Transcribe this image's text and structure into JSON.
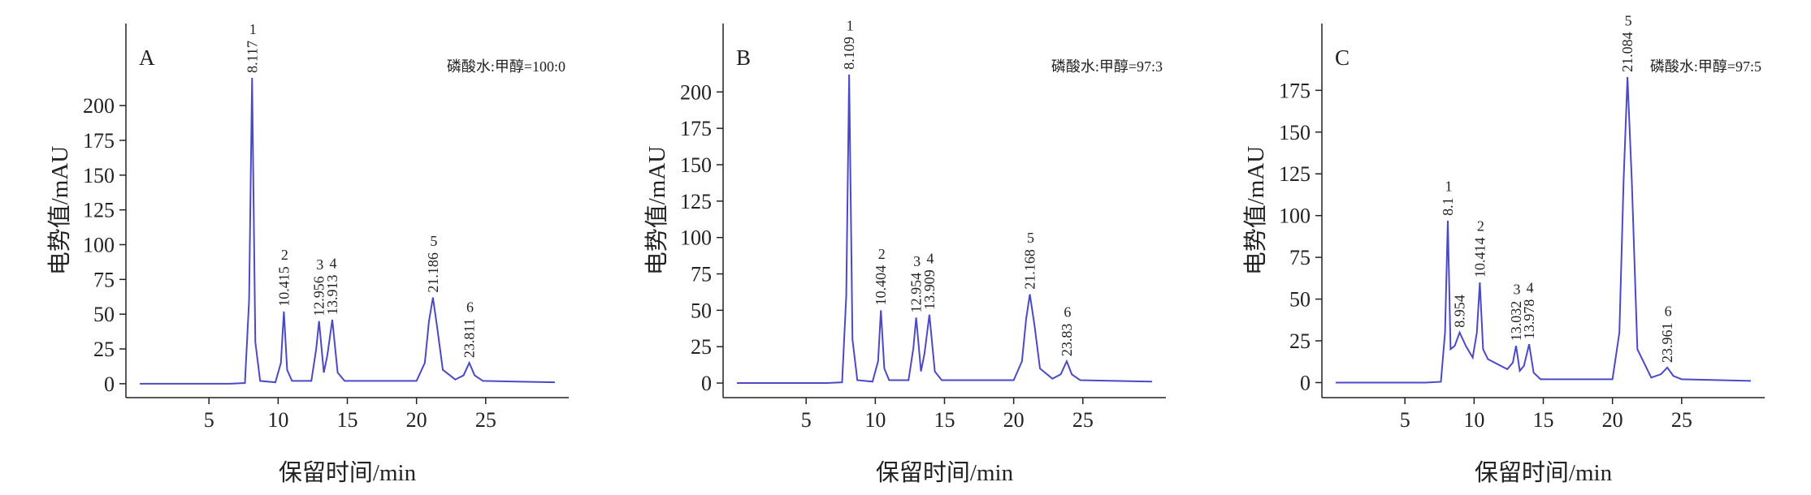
{
  "chart_data": [
    {
      "type": "line",
      "panel": "A",
      "condition": "磷酸水:甲醇=100:0",
      "ylabel": "电势值/mAU",
      "xlabel": "保留时间/min",
      "color": "#4a4ac8",
      "xlim": [
        -1,
        31
      ],
      "ylim": [
        -10,
        259
      ],
      "xticks": [
        5,
        10,
        15,
        20,
        25
      ],
      "yticks": [
        0,
        25,
        50,
        75,
        100,
        125,
        150,
        175,
        200
      ],
      "x": [
        0,
        6.5,
        7.6,
        7.9,
        8.117,
        8.35,
        8.7,
        9.8,
        10.2,
        10.415,
        10.65,
        11,
        12.4,
        12.75,
        12.956,
        13.3,
        13.55,
        13.913,
        14.3,
        14.8,
        20,
        20.6,
        20.9,
        21.186,
        21.5,
        21.9,
        22.8,
        23.4,
        23.811,
        24.2,
        24.8,
        30
      ],
      "values": [
        0,
        0,
        0.5,
        60,
        220,
        30,
        2,
        1,
        15,
        52,
        10,
        2,
        2,
        25,
        45,
        8,
        20,
        46,
        8,
        2,
        2,
        15,
        45,
        62,
        40,
        10,
        3,
        6,
        15,
        6,
        2,
        1
      ],
      "peaks": [
        {
          "rt": 8.117,
          "number": 1
        },
        {
          "rt": 10.415,
          "number": 2
        },
        {
          "rt": 12.956,
          "number": 3
        },
        {
          "rt": 13.913,
          "number": 4
        },
        {
          "rt": 21.186,
          "number": 5
        },
        {
          "rt": 23.811,
          "number": 6
        }
      ]
    },
    {
      "type": "line",
      "panel": "B",
      "condition": "磷酸水:甲醇=97:3",
      "ylabel": "电势值/mAU",
      "xlabel": "保留时间/min",
      "color": "#4a4ac8",
      "xlim": [
        -1,
        31
      ],
      "ylim": [
        -10,
        247
      ],
      "xticks": [
        5,
        10,
        15,
        20,
        25
      ],
      "yticks": [
        0,
        25,
        50,
        75,
        100,
        125,
        150,
        175,
        200
      ],
      "x": [
        0,
        6.5,
        7.6,
        7.9,
        8.109,
        8.35,
        8.7,
        9.8,
        10.2,
        10.404,
        10.65,
        11,
        12.4,
        12.75,
        12.954,
        13.3,
        13.55,
        13.909,
        14.3,
        14.8,
        20,
        20.6,
        20.9,
        21.168,
        21.5,
        21.9,
        22.8,
        23.4,
        23.83,
        24.2,
        24.8,
        30
      ],
      "values": [
        0,
        0,
        0.5,
        60,
        212,
        30,
        2,
        1,
        15,
        50,
        10,
        2,
        2,
        24,
        45,
        8,
        20,
        47,
        8,
        2,
        2,
        15,
        44,
        61,
        40,
        10,
        3,
        6,
        15,
        6,
        2,
        1
      ],
      "peaks": [
        {
          "rt": 8.109,
          "number": 1
        },
        {
          "rt": 10.404,
          "number": 2
        },
        {
          "rt": 12.954,
          "number": 3
        },
        {
          "rt": 13.909,
          "number": 4
        },
        {
          "rt": 21.168,
          "number": 5
        },
        {
          "rt": 23.83,
          "number": 6
        }
      ]
    },
    {
      "type": "line",
      "panel": "C",
      "condition": "磷酸水:甲醇=97:5",
      "ylabel": "电势值/mAU",
      "xlabel": "保留时间/min",
      "color": "#4a4ac8",
      "xlim": [
        -1,
        31
      ],
      "ylim": [
        -9,
        215
      ],
      "xticks": [
        5,
        10,
        15,
        20,
        25
      ],
      "yticks": [
        0,
        25,
        50,
        75,
        100,
        125,
        150,
        175
      ],
      "x": [
        0,
        6.5,
        7.6,
        7.9,
        8.1,
        8.3,
        8.6,
        8.954,
        9.4,
        9.9,
        10.2,
        10.414,
        10.65,
        11,
        12.4,
        12.8,
        13.032,
        13.3,
        13.6,
        13.978,
        14.3,
        14.8,
        20,
        20.5,
        20.8,
        21.084,
        21.4,
        21.8,
        22.8,
        23.5,
        23.961,
        24.4,
        25,
        30
      ],
      "values": [
        0,
        0,
        0.5,
        30,
        97,
        20,
        22,
        30,
        22,
        15,
        30,
        60,
        20,
        14,
        8,
        12,
        22,
        7,
        10,
        23,
        6,
        2,
        2,
        30,
        120,
        183,
        120,
        20,
        3,
        5,
        9,
        4,
        2,
        1
      ],
      "peaks": [
        {
          "rt": 8.1,
          "number": 1
        },
        {
          "rt": 8.954
        },
        {
          "rt": 10.414,
          "number": 2
        },
        {
          "rt": 13.032,
          "number": 3
        },
        {
          "rt": 13.978,
          "number": 4
        },
        {
          "rt": 21.084,
          "number": 5
        },
        {
          "rt": 23.961,
          "number": 6
        }
      ]
    }
  ]
}
